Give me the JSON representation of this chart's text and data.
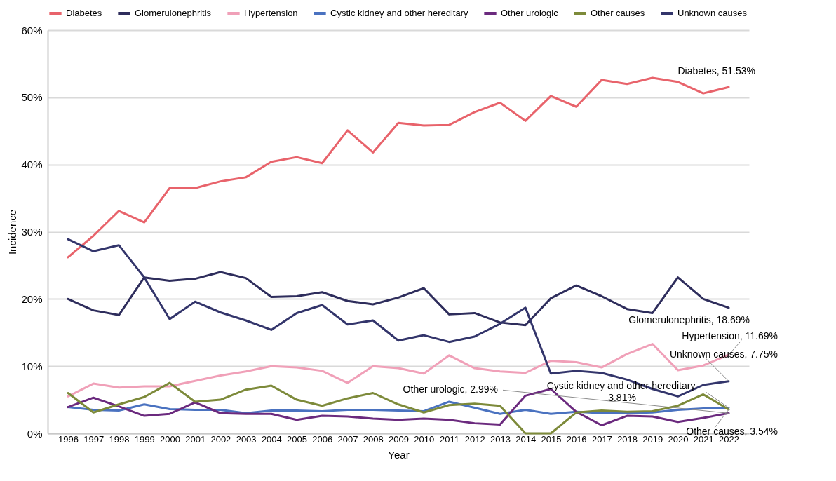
{
  "chart_data": {
    "type": "line",
    "xlabel": "Year",
    "ylabel": "Incidence",
    "categories": [
      "1996",
      "1997",
      "1998",
      "1999",
      "2000",
      "2001",
      "2002",
      "2003",
      "2004",
      "2005",
      "2006",
      "2007",
      "2008",
      "2009",
      "2010",
      "2011",
      "2012",
      "2013",
      "2014",
      "2015",
      "2016",
      "2017",
      "2018",
      "2019",
      "2020",
      "2021",
      "2022"
    ],
    "series": [
      {
        "name": "Diabetes",
        "color": "#e8636b",
        "values": [
          26.2,
          29.4,
          33.1,
          31.4,
          36.5,
          36.5,
          37.5,
          38.1,
          40.4,
          41.1,
          40.2,
          45.1,
          41.8,
          46.2,
          45.8,
          45.9,
          47.8,
          49.2,
          46.5,
          50.2,
          48.6,
          52.6,
          52.0,
          52.9,
          52.3,
          50.6,
          51.53
        ]
      },
      {
        "name": "Glomerulonephritis",
        "color": "#2e2d5c",
        "values": [
          20.0,
          18.3,
          17.6,
          23.2,
          22.7,
          23.0,
          24.0,
          23.1,
          20.3,
          20.4,
          21.0,
          19.7,
          19.2,
          20.2,
          21.6,
          17.7,
          17.9,
          16.5,
          16.1,
          20.1,
          22.0,
          20.4,
          18.5,
          17.9,
          23.2,
          20.0,
          18.69
        ]
      },
      {
        "name": "Hypertension",
        "color": "#f0a0b8",
        "values": [
          5.5,
          7.4,
          6.8,
          7.0,
          7.0,
          7.8,
          8.6,
          9.2,
          10.0,
          9.8,
          9.3,
          7.5,
          10.0,
          9.7,
          8.9,
          11.6,
          9.7,
          9.2,
          9.0,
          10.8,
          10.6,
          9.8,
          11.8,
          13.3,
          9.4,
          10.1,
          11.69
        ]
      },
      {
        "name": "Cystic kidney and other hereditary",
        "color": "#4a72c0",
        "values": [
          3.9,
          3.5,
          3.4,
          4.3,
          3.6,
          3.5,
          3.5,
          3.0,
          3.4,
          3.4,
          3.3,
          3.5,
          3.5,
          3.4,
          3.3,
          4.7,
          3.8,
          2.9,
          3.5,
          2.9,
          3.2,
          3.0,
          3.0,
          3.1,
          3.5,
          3.7,
          3.81
        ]
      },
      {
        "name": "Other urologic",
        "color": "#6b2a7e",
        "values": [
          3.9,
          5.3,
          4.0,
          2.6,
          2.9,
          4.6,
          3.0,
          2.9,
          2.9,
          2.0,
          2.6,
          2.5,
          2.2,
          2.0,
          2.2,
          2.0,
          1.5,
          1.3,
          5.6,
          6.6,
          3.2,
          1.2,
          2.6,
          2.5,
          1.7,
          2.3,
          2.99
        ]
      },
      {
        "name": "Other causes",
        "color": "#7d8a3a",
        "values": [
          6.0,
          3.1,
          4.3,
          5.4,
          7.5,
          4.7,
          5.0,
          6.5,
          7.1,
          5.0,
          4.1,
          5.2,
          6.0,
          4.3,
          3.1,
          4.2,
          4.4,
          4.1,
          0,
          0,
          3.1,
          3.4,
          3.2,
          3.3,
          4.1,
          5.8,
          3.54
        ]
      },
      {
        "name": "Unknown causes",
        "color": "#33356b",
        "values": [
          28.9,
          27.1,
          28.0,
          23.2,
          17.0,
          19.6,
          18.0,
          16.8,
          15.4,
          17.9,
          19.1,
          16.2,
          16.8,
          13.8,
          14.6,
          13.6,
          14.4,
          16.3,
          18.7,
          8.9,
          9.3,
          9.0,
          8.0,
          6.6,
          5.5,
          7.2,
          7.75
        ]
      }
    ],
    "ylim": [
      0,
      60
    ],
    "yticks": [
      {
        "value": 0,
        "label": "0%"
      },
      {
        "value": 10,
        "label": "10%"
      },
      {
        "value": 20,
        "label": "20%"
      },
      {
        "value": 30,
        "label": "30%"
      },
      {
        "value": 40,
        "label": "40%"
      },
      {
        "value": 50,
        "label": "50%"
      },
      {
        "value": 60,
        "label": "60%"
      }
    ],
    "grid": "y",
    "legend": "top",
    "annotations": [
      {
        "text": "Diabetes, 51.53%",
        "x": "2022",
        "y": 51.53
      },
      {
        "text": "Glomerulonephritis, 18.69%",
        "x": "2022",
        "y": 18.69
      },
      {
        "text": "Hypertension, 11.69%",
        "x": "2022",
        "y": 11.69
      },
      {
        "text": "Unknown causes, 7.75%",
        "x": "2022",
        "y": 7.75
      },
      {
        "text": "Other urologic, 2.99%",
        "x": "2022",
        "y": 2.99
      },
      {
        "text": "Cystic kidney and other hereditary, 3.81%",
        "x": "2022",
        "y": 3.81
      },
      {
        "text": "Other causes, 3.54%",
        "x": "2022",
        "y": 3.54
      }
    ]
  }
}
